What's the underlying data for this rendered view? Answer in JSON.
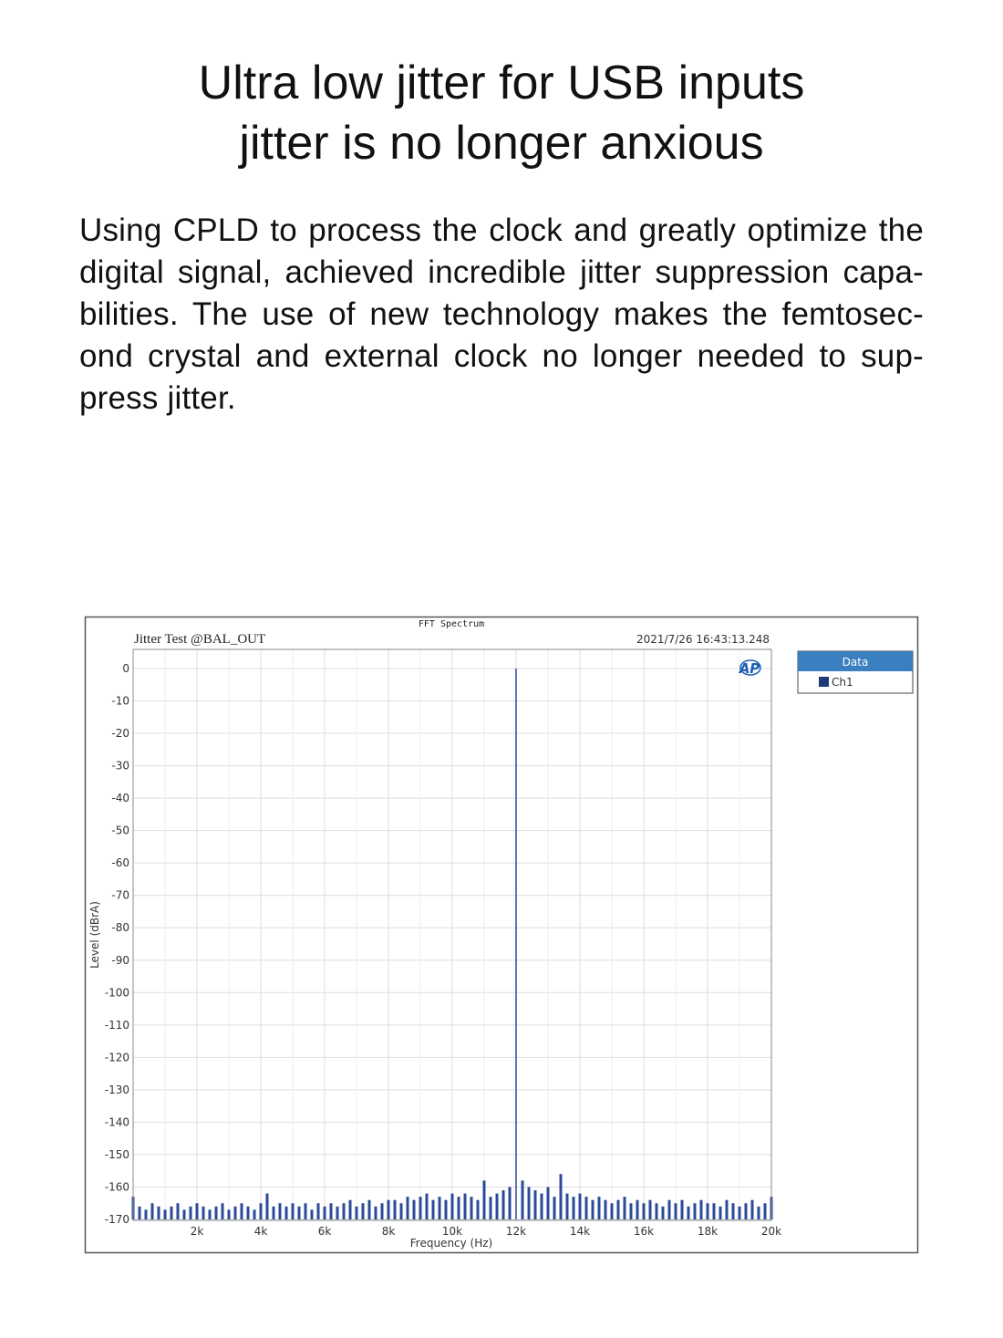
{
  "heading": {
    "line1": "Ultra low jitter for USB inputs",
    "line2": "jitter is no longer anxious"
  },
  "body_text": "Using CPLD to process the clock and greatly optimize the digital signal, achieved incredible jitter suppression capa-bilities. The use of new technology makes the femtosec-ond crystal and external clock no longer needed to sup-press jitter.",
  "chart_data": {
    "type": "bar",
    "title": "FFT Spectrum",
    "subtitle": "Jitter Test @BAL_OUT",
    "timestamp": "2021/7/26 16:43:13.248",
    "logo": "AP",
    "xlabel": "Frequency (Hz)",
    "ylabel": "Level (dBrA)",
    "xlim": [
      0,
      20000
    ],
    "ylim": [
      -170,
      0
    ],
    "grid": true,
    "x_ticks": [
      "2k",
      "4k",
      "6k",
      "8k",
      "10k",
      "12k",
      "14k",
      "16k",
      "18k",
      "20k"
    ],
    "x_tick_values": [
      2000,
      4000,
      6000,
      8000,
      10000,
      12000,
      14000,
      16000,
      18000,
      20000
    ],
    "y_ticks": [
      0,
      -10,
      -20,
      -30,
      -40,
      -50,
      -60,
      -70,
      -80,
      -90,
      -100,
      -110,
      -120,
      -130,
      -140,
      -150,
      -160,
      -170
    ],
    "legend": {
      "title": "Data",
      "placement": "right",
      "entries": [
        {
          "name": "Ch1",
          "color": "#1f3a7a"
        }
      ]
    },
    "series": [
      {
        "name": "Ch1",
        "color": "#2b4a9a",
        "x_step": 200,
        "x_start": 0,
        "values": [
          -163,
          -166,
          -167,
          -165,
          -166,
          -167,
          -166,
          -165,
          -167,
          -166,
          -165,
          -166,
          -167,
          -166,
          -165,
          -167,
          -166,
          -165,
          -166,
          -167,
          -165,
          -162,
          -166,
          -165,
          -166,
          -165,
          -166,
          -165,
          -167,
          -165,
          -166,
          -165,
          -166,
          -165,
          -164,
          -166,
          -165,
          -164,
          -166,
          -165,
          -164,
          -164,
          -165,
          -163,
          -164,
          -163,
          -162,
          -164,
          -163,
          -164,
          -162,
          -163,
          -162,
          -163,
          -164,
          -158,
          -163,
          -162,
          -161,
          -160,
          0,
          -158,
          -160,
          -161,
          -162,
          -160,
          -163,
          -156,
          -162,
          -163,
          -162,
          -163,
          -164,
          -163,
          -164,
          -165,
          -164,
          -163,
          -165,
          -164,
          -165,
          -164,
          -165,
          -166,
          -164,
          -165,
          -164,
          -166,
          -165,
          -164,
          -165,
          -165,
          -166,
          -164,
          -165,
          -166,
          -165,
          -164,
          -166,
          -165,
          -163
        ]
      }
    ],
    "peak": {
      "x": 12000,
      "y": 0
    }
  }
}
